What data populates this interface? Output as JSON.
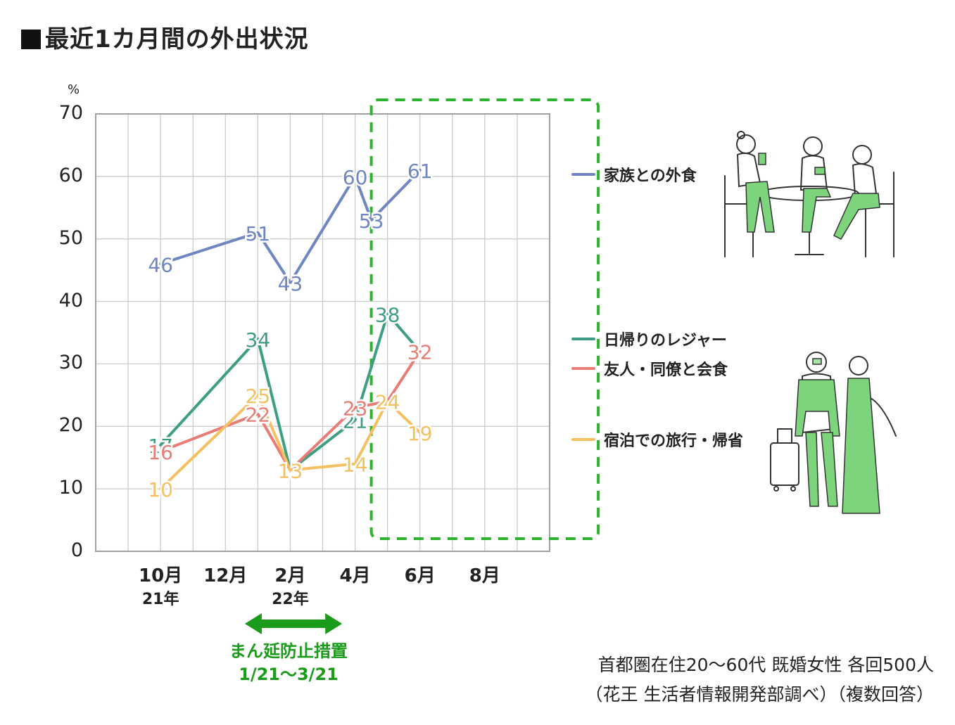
{
  "title": "最近1カ月間の外出状況",
  "unit": "%",
  "legend": [
    {
      "label": "家族との外食",
      "color": "#6f86c3"
    },
    {
      "label": "日帰りのレジャー",
      "color": "#3e9e84"
    },
    {
      "label": "友人・同僚と会食",
      "color": "#e97d76"
    },
    {
      "label": "宿泊での旅行・帰省",
      "color": "#f5c062"
    }
  ],
  "period": {
    "label": "まん延防止措置",
    "range": "1/21〜3/21",
    "color": "#1a9c1a"
  },
  "note": {
    "line1": "首都圏在住20〜60代 既婚女性 各回500人",
    "line2": "（花王 生活者情報開発部調べ）（複数回答）"
  },
  "highlight_color": "#2db32d",
  "chart_data": {
    "type": "line",
    "x_ticks": [
      {
        "label": "10月",
        "sub": "21年",
        "value": 10
      },
      {
        "label": "12月",
        "sub": "",
        "value": 12
      },
      {
        "label": "2月",
        "sub": "22年",
        "value": 14
      },
      {
        "label": "4月",
        "sub": "",
        "value": 16
      },
      {
        "label": "6月",
        "sub": "",
        "value": 18
      },
      {
        "label": "8月",
        "sub": "",
        "value": 20
      }
    ],
    "xlim": [
      8,
      22
    ],
    "ylim": [
      0,
      70
    ],
    "y_ticks": [
      0,
      10,
      20,
      30,
      40,
      50,
      60,
      70
    ],
    "grid": true,
    "period_range": [
      12.6,
      15.6
    ],
    "highlight_range": [
      16.5,
      23.5
    ],
    "series": [
      {
        "name": "家族との外食",
        "color": "#6f86c3",
        "x": [
          10,
          13,
          14,
          16,
          16.5,
          18
        ],
        "y": [
          46,
          51,
          43,
          60,
          53,
          61
        ]
      },
      {
        "name": "日帰りのレジャー",
        "color": "#3e9e84",
        "x": [
          10,
          13,
          14,
          16,
          17,
          18
        ],
        "y": [
          17,
          34,
          13,
          21,
          38,
          32
        ]
      },
      {
        "name": "友人・同僚と会食",
        "color": "#e97d76",
        "x": [
          10,
          13,
          14,
          16,
          17,
          18
        ],
        "y": [
          16,
          22,
          13,
          23,
          24,
          32
        ]
      },
      {
        "name": "宿泊での旅行・帰省",
        "color": "#f5c062",
        "x": [
          10,
          13,
          14,
          16,
          17,
          18
        ],
        "y": [
          10,
          25,
          13,
          14,
          24,
          19
        ]
      }
    ]
  }
}
